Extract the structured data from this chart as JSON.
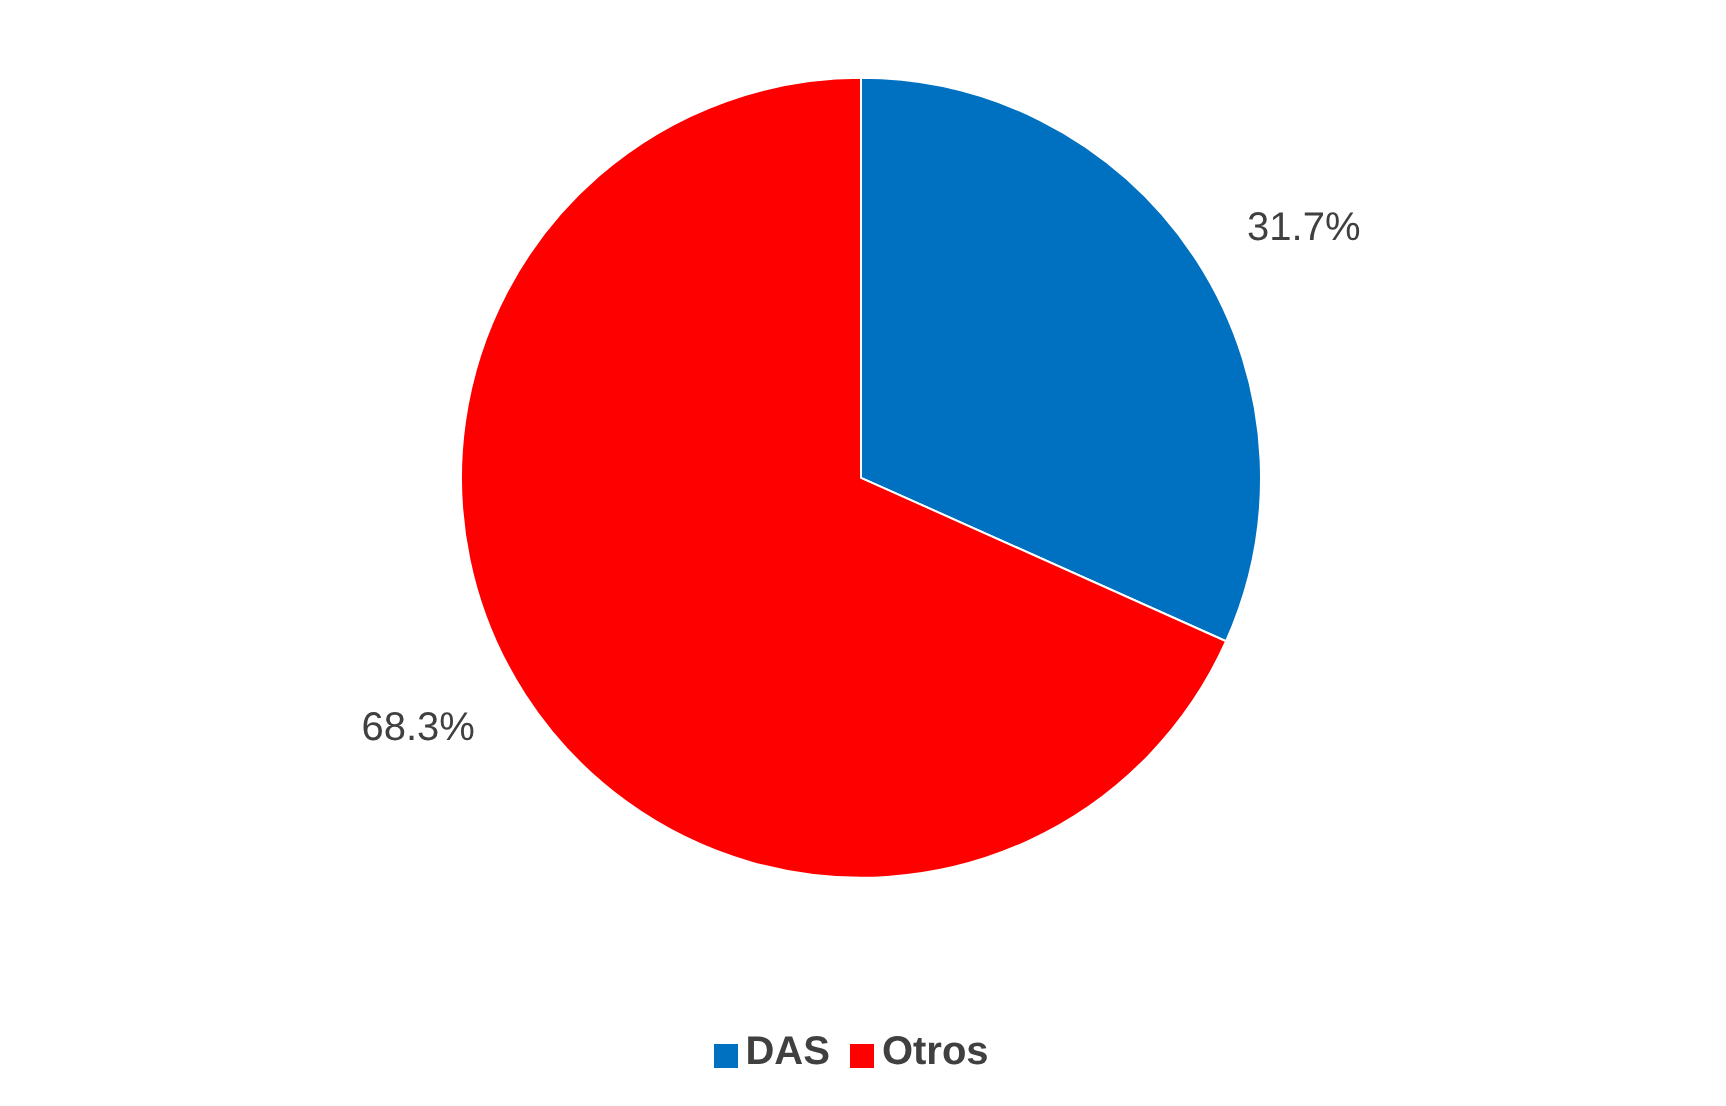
{
  "chart_data": {
    "type": "pie",
    "categories": [
      "DAS",
      "Otros"
    ],
    "values": [
      31.7,
      68.3
    ],
    "colors": [
      "#0070c0",
      "#ff0000"
    ],
    "value_labels": [
      "31.7%",
      "68.3%"
    ],
    "legend": "bottom"
  }
}
